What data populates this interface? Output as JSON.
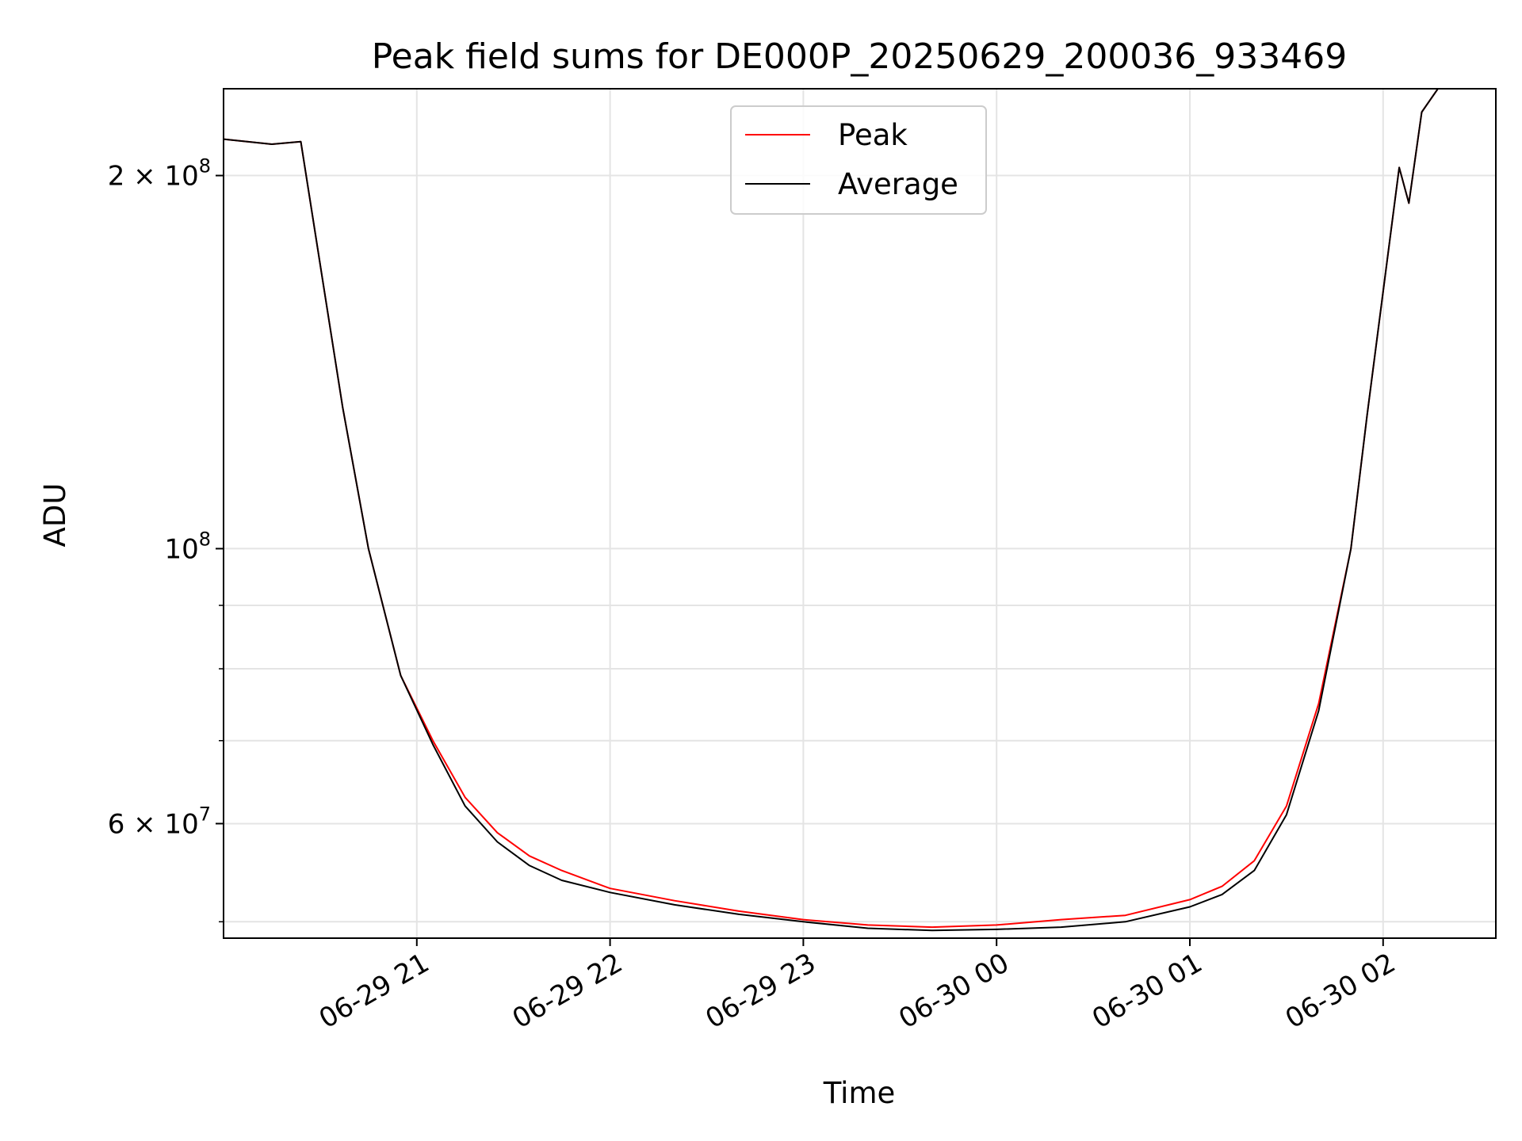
{
  "chart_data": {
    "type": "line",
    "title": "Peak field sums for DE000P_20250629_200036_933469",
    "xlabel": "Time",
    "ylabel": "ADU",
    "y_scale": "log",
    "ylim": [
      48500000,
      235000000
    ],
    "xlim": [
      "2025-06-29 20:00",
      "2025-06-30 02:35"
    ],
    "grid": true,
    "legend": "top-center",
    "x_ticks": [
      {
        "t": "2025-06-29 21:00",
        "label": "06-29 21"
      },
      {
        "t": "2025-06-29 22:00",
        "label": "06-29 22"
      },
      {
        "t": "2025-06-29 23:00",
        "label": "06-29 23"
      },
      {
        "t": "2025-06-30 00:00",
        "label": "06-30 00"
      },
      {
        "t": "2025-06-30 01:00",
        "label": "06-30 01"
      },
      {
        "t": "2025-06-30 02:00",
        "label": "06-30 02"
      }
    ],
    "y_ticks": [
      {
        "value": 200000000,
        "mantissa": "2",
        "exp": "8"
      },
      {
        "value": 100000000,
        "mantissa": "",
        "exp": "8"
      },
      {
        "value": 60000000,
        "mantissa": "6",
        "exp": "7"
      }
    ],
    "y_minor_ticks": [
      50000000,
      70000000,
      80000000,
      90000000
    ],
    "series": [
      {
        "name": "Peak",
        "color": "#ff0000",
        "t": [
          "2025-06-29 20:00",
          "2025-06-29 20:15",
          "2025-06-29 20:24",
          "2025-06-29 20:37",
          "2025-06-29 20:45",
          "2025-06-29 20:55",
          "2025-06-29 21:05",
          "2025-06-29 21:15",
          "2025-06-29 21:25",
          "2025-06-29 21:35",
          "2025-06-29 21:45",
          "2025-06-29 22:00",
          "2025-06-29 22:20",
          "2025-06-29 22:40",
          "2025-06-29 23:00",
          "2025-06-29 23:20",
          "2025-06-29 23:40",
          "2025-06-30 00:00",
          "2025-06-30 00:20",
          "2025-06-30 00:40",
          "2025-06-30 01:00",
          "2025-06-30 01:10",
          "2025-06-30 01:20",
          "2025-06-30 01:30",
          "2025-06-30 01:40",
          "2025-06-30 01:50",
          "2025-06-30 01:55",
          "2025-06-30 02:05",
          "2025-06-30 02:08",
          "2025-06-30 02:12",
          "2025-06-30 02:17"
        ],
        "values": [
          214000000,
          212000000,
          213000000,
          130000000,
          100000000,
          79000000,
          70000000,
          63000000,
          59000000,
          56500000,
          55000000,
          53200000,
          52000000,
          51000000,
          50200000,
          49700000,
          49500000,
          49700000,
          50200000,
          50600000,
          52100000,
          53400000,
          56000000,
          62000000,
          75000000,
          100000000,
          128000000,
          203000000,
          190000000,
          225000000,
          235000000
        ]
      },
      {
        "name": "Average",
        "color": "#000000",
        "t": [
          "2025-06-29 20:00",
          "2025-06-29 20:15",
          "2025-06-29 20:24",
          "2025-06-29 20:37",
          "2025-06-29 20:45",
          "2025-06-29 20:55",
          "2025-06-29 21:05",
          "2025-06-29 21:15",
          "2025-06-29 21:25",
          "2025-06-29 21:35",
          "2025-06-29 21:45",
          "2025-06-29 22:00",
          "2025-06-29 22:20",
          "2025-06-29 22:40",
          "2025-06-29 23:00",
          "2025-06-29 23:20",
          "2025-06-29 23:40",
          "2025-06-30 00:00",
          "2025-06-30 00:20",
          "2025-06-30 00:40",
          "2025-06-30 01:00",
          "2025-06-30 01:10",
          "2025-06-30 01:20",
          "2025-06-30 01:30",
          "2025-06-30 01:40",
          "2025-06-30 01:50",
          "2025-06-30 01:55",
          "2025-06-30 02:05",
          "2025-06-30 02:08",
          "2025-06-30 02:12",
          "2025-06-30 02:17"
        ],
        "values": [
          214000000,
          212000000,
          213000000,
          130000000,
          100000000,
          79000000,
          69500000,
          62000000,
          58000000,
          55500000,
          54000000,
          52800000,
          51600000,
          50700000,
          50000000,
          49400000,
          49200000,
          49300000,
          49500000,
          50000000,
          51400000,
          52600000,
          55000000,
          61000000,
          74000000,
          100000000,
          128000000,
          203000000,
          190000000,
          225000000,
          235000000
        ]
      }
    ]
  }
}
